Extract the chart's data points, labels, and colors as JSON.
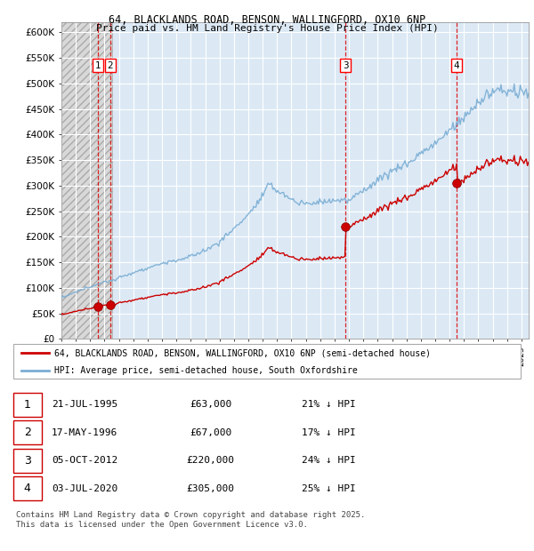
{
  "title_line1": "64, BLACKLANDS ROAD, BENSON, WALLINGFORD, OX10 6NP",
  "title_line2": "Price paid vs. HM Land Registry's House Price Index (HPI)",
  "ylim": [
    0,
    620000
  ],
  "yticks": [
    0,
    50000,
    100000,
    150000,
    200000,
    250000,
    300000,
    350000,
    400000,
    450000,
    500000,
    550000,
    600000
  ],
  "ytick_labels": [
    "£0",
    "£50K",
    "£100K",
    "£150K",
    "£200K",
    "£250K",
    "£300K",
    "£350K",
    "£400K",
    "£450K",
    "£500K",
    "£550K",
    "£600K"
  ],
  "xlim_start": 1993.0,
  "xlim_end": 2025.5,
  "hpi_color": "#7aadd4",
  "price_color": "#cc0000",
  "sale_marker_color": "#cc0000",
  "hatched_region_end": 1996.5,
  "sales": [
    {
      "num": 1,
      "date_year": 1995.55,
      "price": 63000,
      "label": "1"
    },
    {
      "num": 2,
      "date_year": 1996.38,
      "price": 67000,
      "label": "2"
    },
    {
      "num": 3,
      "date_year": 2012.76,
      "price": 220000,
      "label": "3"
    },
    {
      "num": 4,
      "date_year": 2020.5,
      "price": 305000,
      "label": "4"
    }
  ],
  "legend_entries": [
    "64, BLACKLANDS ROAD, BENSON, WALLINGFORD, OX10 6NP (semi-detached house)",
    "HPI: Average price, semi-detached house, South Oxfordshire"
  ],
  "table_rows": [
    {
      "num": "1",
      "date": "21-JUL-1995",
      "price": "£63,000",
      "note": "21% ↓ HPI"
    },
    {
      "num": "2",
      "date": "17-MAY-1996",
      "price": "£67,000",
      "note": "17% ↓ HPI"
    },
    {
      "num": "3",
      "date": "05-OCT-2012",
      "price": "£220,000",
      "note": "24% ↓ HPI"
    },
    {
      "num": "4",
      "date": "03-JUL-2020",
      "price": "£305,000",
      "note": "25% ↓ HPI"
    }
  ],
  "footer": "Contains HM Land Registry data © Crown copyright and database right 2025.\nThis data is licensed under the Open Government Licence v3.0.",
  "plot_bg": "#dce9f5",
  "grid_color": "#ffffff",
  "hatch_facecolor": "#d8d8d8",
  "hatch_edgecolor": "#aaaaaa"
}
